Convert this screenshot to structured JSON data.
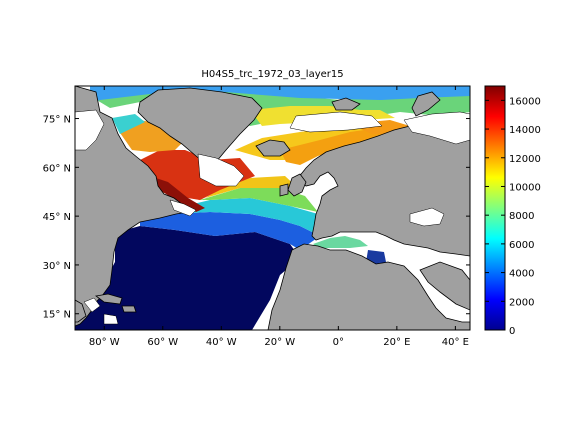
{
  "title": "H04S5_trc_1972_03_layer15",
  "map": {
    "lon_range": [
      -90,
      45
    ],
    "lat_range": [
      10,
      85
    ],
    "x_ticks": [
      {
        "value": -80,
        "label": "80° W"
      },
      {
        "value": -60,
        "label": "60° W"
      },
      {
        "value": -40,
        "label": "40° W"
      },
      {
        "value": -20,
        "label": "20° W"
      },
      {
        "value": 0,
        "label": "0°"
      },
      {
        "value": 20,
        "label": "20° E"
      },
      {
        "value": 40,
        "label": "40° E"
      }
    ],
    "y_ticks": [
      {
        "value": 15,
        "label": "15° N"
      },
      {
        "value": 30,
        "label": "30° N"
      },
      {
        "value": 45,
        "label": "45° N"
      },
      {
        "value": 60,
        "label": "60° N"
      },
      {
        "value": 75,
        "label": "75° N"
      }
    ],
    "land_color": "#a0a0a0",
    "colormap": "jet"
  },
  "colorbar": {
    "min": 0,
    "max": 17000,
    "ticks": [
      0,
      2000,
      4000,
      6000,
      8000,
      10000,
      12000,
      14000,
      16000
    ]
  }
}
